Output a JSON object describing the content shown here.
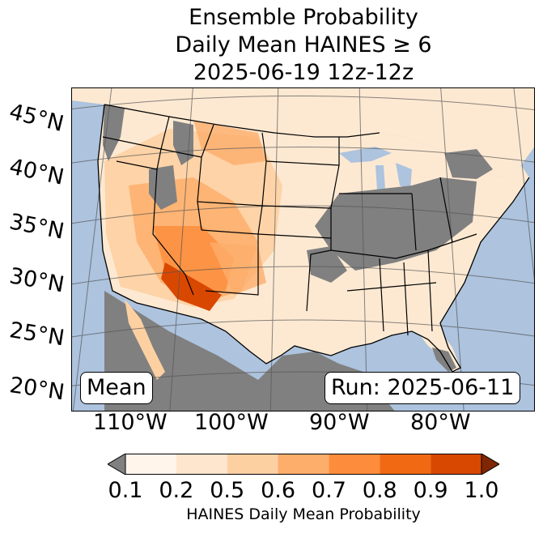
{
  "title": {
    "line1": "Ensemble Probability",
    "line2": "Daily Mean HAINES ≥ 6",
    "line3": "2025-06-19 12z-12z"
  },
  "map": {
    "lat_labels": [
      "45°N",
      "40°N",
      "35°N",
      "30°N",
      "25°N",
      "20°N"
    ],
    "lon_labels": [
      "110°W",
      "100°W",
      "90°W",
      "80°W"
    ],
    "stat_box": "Mean",
    "run_box": "Run: 2025-06-11",
    "colors": {
      "ocean": "#adc3de",
      "no_data": "#808080",
      "grid": "#555555"
    }
  },
  "colorbar": {
    "ticks": [
      "0.1",
      "0.2",
      "0.5",
      "0.6",
      "0.7",
      "0.8",
      "0.9",
      "1.0"
    ],
    "colors": [
      "#fff5eb",
      "#fee6ce",
      "#fdd0a2",
      "#fdae6b",
      "#fd8d3c",
      "#f16913",
      "#d94801"
    ],
    "under_color": "#808080",
    "over_color": "#7f2704",
    "label": "HAINES Daily Mean Probability"
  }
}
